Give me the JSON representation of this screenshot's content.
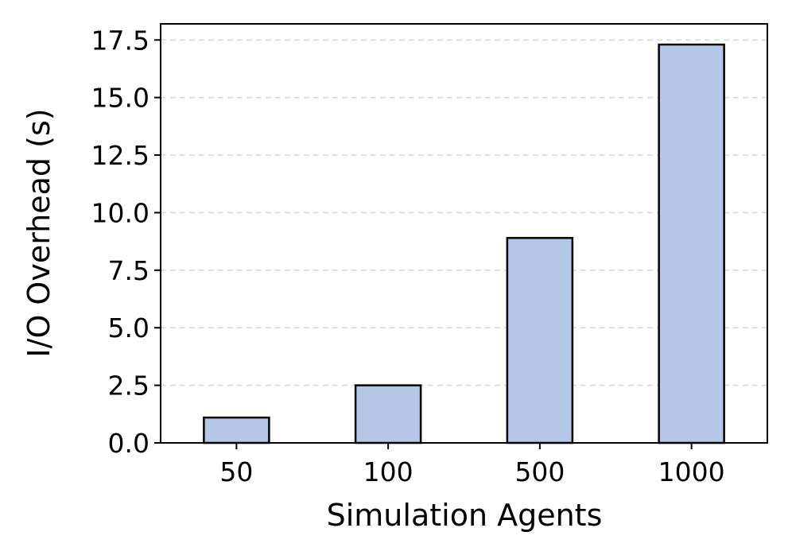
{
  "chart_data": {
    "type": "bar",
    "categories": [
      "50",
      "100",
      "500",
      "1000"
    ],
    "values": [
      1.1,
      2.5,
      8.9,
      17.3
    ],
    "xlabel": "Simulation Agents",
    "ylabel": "I/O Overhead (s)",
    "ylim": [
      0,
      18.2
    ],
    "yticks": [
      0.0,
      2.5,
      5.0,
      7.5,
      10.0,
      12.5,
      15.0,
      17.5
    ],
    "ytick_labels": [
      "0.0",
      "2.5",
      "5.0",
      "7.5",
      "10.0",
      "12.5",
      "15.0",
      "17.5"
    ],
    "grid": "horizontal dashed",
    "bar_color": "#b4c7e7",
    "edge_color": "#000000"
  }
}
